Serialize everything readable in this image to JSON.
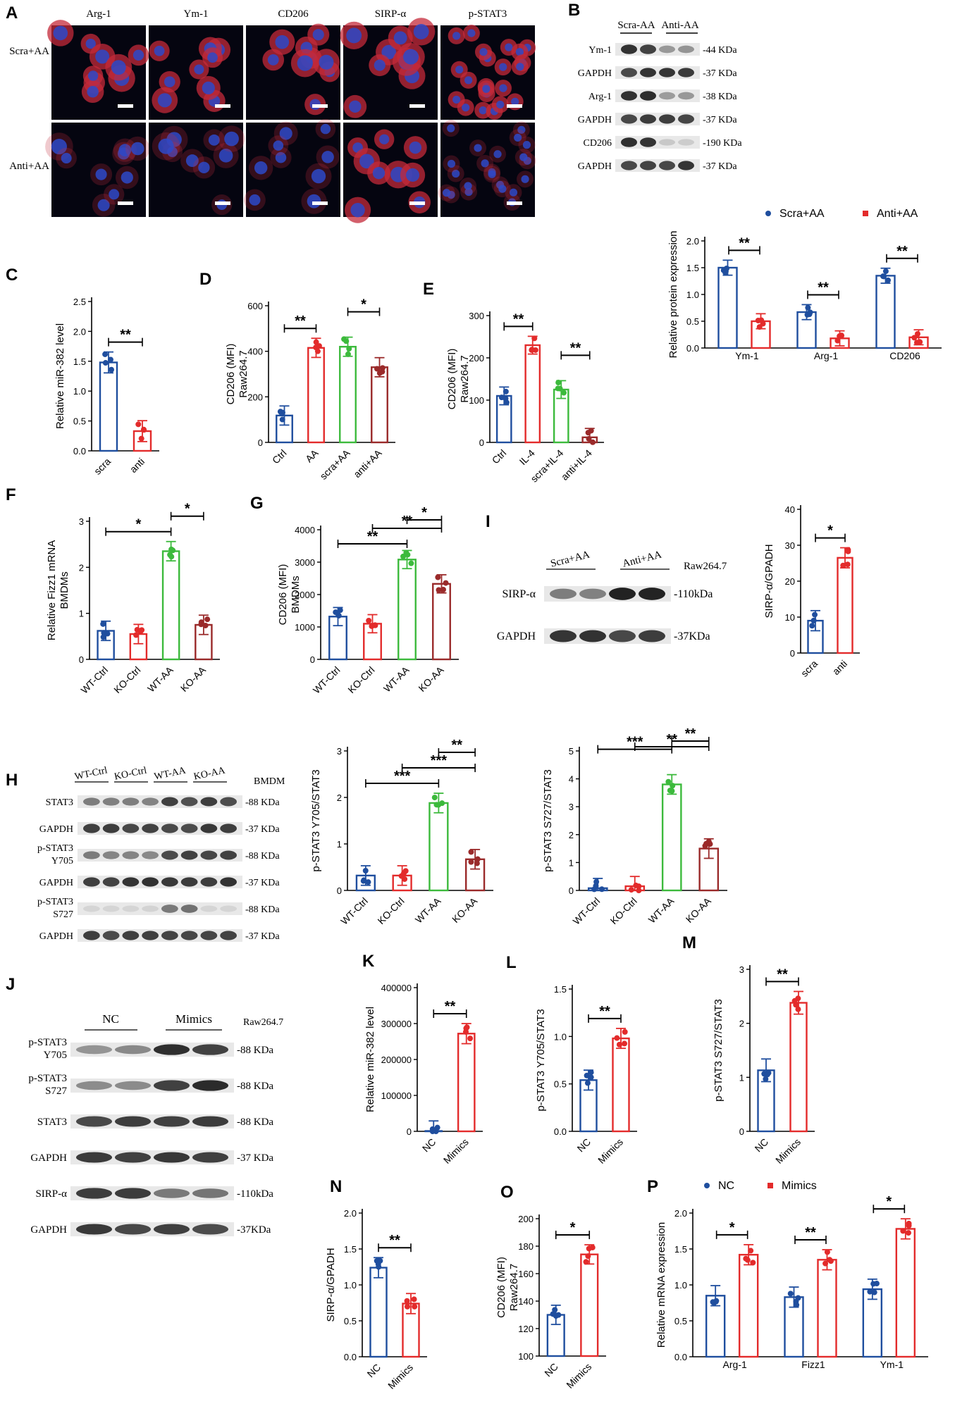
{
  "colors": {
    "blue": "#1f4e9e",
    "red": "#e32b2b",
    "green": "#3cba3c",
    "darkred": "#9a2a2a",
    "micro_bg": "#050510",
    "nucleus": "#2d49c8",
    "stain": "#c42a3a"
  },
  "panel_A": {
    "letter": "A",
    "columns": [
      "Arg-1",
      "Ym-1",
      "CD206",
      "SIRP-α",
      "p-STAT3"
    ],
    "rows": [
      "Scra+AA",
      "Anti+AA"
    ]
  },
  "panel_B": {
    "letter": "B",
    "groups": [
      "Scra-AA",
      "Anti-AA"
    ],
    "blots": [
      {
        "label": "Ym-1",
        "size": "-44 KDa"
      },
      {
        "label": "GAPDH",
        "size": "-37 KDa"
      },
      {
        "label": "Arg-1",
        "size": "-38 KDa"
      },
      {
        "label": "GAPDH",
        "size": "-37 KDa"
      },
      {
        "label": "CD206",
        "size": "-190 KDa"
      },
      {
        "label": "GAPDH",
        "size": "-37 KDa"
      }
    ]
  },
  "panel_H_blot": {
    "letter": "H",
    "groups": [
      "WT-Ctrl",
      "KO-Ctrl",
      "WT-AA",
      "KO-AA"
    ],
    "cell": "BMDM",
    "blots": [
      {
        "label": "STAT3",
        "size": "-88 KDa"
      },
      {
        "label": "GAPDH",
        "size": "-37 KDa"
      },
      {
        "label": "p-STAT3\nY705",
        "size": "-88 KDa"
      },
      {
        "label": "GAPDH",
        "size": "-37 KDa"
      },
      {
        "label": "p-STAT3\nS727",
        "size": "-88 KDa"
      },
      {
        "label": "GAPDH",
        "size": "-37 KDa"
      }
    ]
  },
  "panel_I_blot": {
    "letter": "I",
    "groups": [
      "Scra+AA",
      "Anti+AA"
    ],
    "cell": "Raw264.7",
    "blots": [
      {
        "label": "SIRP-α",
        "size": "-110kDa"
      },
      {
        "label": "GAPDH",
        "size": "-37KDa"
      }
    ]
  },
  "panel_J": {
    "letter": "J",
    "groups": [
      "NC",
      "Mimics"
    ],
    "cell": "Raw264.7",
    "blots": [
      {
        "label": "p-STAT3\nY705",
        "size": "-88 KDa"
      },
      {
        "label": "p-STAT3\nS727",
        "size": "-88 KDa"
      },
      {
        "label": "STAT3",
        "size": "-88 KDa"
      },
      {
        "label": "GAPDH",
        "size": "-37 KDa"
      },
      {
        "label": "SIRP-α",
        "size": "-110kDa"
      },
      {
        "label": "GAPDH",
        "size": "-37KDa"
      }
    ]
  },
  "chart_data": [
    {
      "id": "B",
      "type": "bar",
      "letter": "",
      "ylabel": "Relative protein expression",
      "ylim": [
        0,
        2.0
      ],
      "yticks": [
        "0.0",
        "0.5",
        "1.0",
        "1.5",
        "2.0"
      ],
      "categories": [
        "Ym-1",
        "Arg-1",
        "CD206"
      ],
      "series": [
        {
          "name": "Scra+AA",
          "values": [
            1.5,
            0.67,
            1.35
          ]
        },
        {
          "name": "Anti+AA",
          "values": [
            0.5,
            0.18,
            0.2
          ]
        }
      ],
      "legend": "top",
      "sig": [
        "**",
        "**",
        "**"
      ]
    },
    {
      "id": "C",
      "type": "bar",
      "letter": "C",
      "ylabel": "Relative miR-382 level",
      "ylim": [
        0,
        2.5
      ],
      "yticks": [
        "0.0",
        "0.5",
        "1.0",
        "1.5",
        "2.0",
        "2.5"
      ],
      "categories": [
        "scra",
        "anti"
      ],
      "values": [
        1.48,
        0.33
      ],
      "sig": [
        "**"
      ]
    },
    {
      "id": "D",
      "type": "bar",
      "letter": "D",
      "ylabel": "CD206 (MFI)\nRaw264.7",
      "ylim": [
        0,
        600
      ],
      "yticks": [
        "0",
        "200",
        "400",
        "600"
      ],
      "categories": [
        "Ctrl",
        "AA",
        "scra+AA",
        "anti+AA"
      ],
      "values": [
        118,
        415,
        420,
        330
      ],
      "sig": [
        "**",
        "*"
      ]
    },
    {
      "id": "E",
      "type": "bar",
      "letter": "E",
      "ylabel": "CD206 (MFI)\nRaw264.7",
      "ylim": [
        0,
        300
      ],
      "yticks": [
        "0",
        "100",
        "200",
        "300"
      ],
      "categories": [
        "Ctrl",
        "IL-4",
        "scra+IL-4",
        "anti+IL-4"
      ],
      "values": [
        110,
        230,
        125,
        12
      ],
      "sig": [
        "**",
        "**"
      ]
    },
    {
      "id": "F",
      "type": "bar",
      "letter": "F",
      "ylabel": "Relative Fizz1 mRNA\nBMDMs",
      "ylim": [
        0,
        3
      ],
      "yticks": [
        "0",
        "1",
        "2",
        "3"
      ],
      "categories": [
        "WT-Ctrl",
        "KO-Ctrl",
        "WT-AA",
        "KO-AA"
      ],
      "values": [
        0.62,
        0.55,
        2.35,
        0.75
      ],
      "sig": [
        "*",
        "*"
      ]
    },
    {
      "id": "G",
      "type": "bar",
      "letter": "G",
      "ylabel": "CD206 (MFI)\nBMDMs",
      "ylim": [
        0,
        4000
      ],
      "yticks": [
        "0",
        "1000",
        "2000",
        "3000",
        "4000"
      ],
      "categories": [
        "WT-Ctrl",
        "KO-Ctrl",
        "WT-AA",
        "KO-AA"
      ],
      "values": [
        1320,
        1100,
        3080,
        2330
      ],
      "sig": [
        "**",
        "**",
        "*"
      ]
    },
    {
      "id": "I",
      "type": "bar",
      "letter": "",
      "ylabel": "SIRP-α/GPADH",
      "ylim": [
        0,
        40
      ],
      "yticks": [
        "0",
        "10",
        "20",
        "30",
        "40"
      ],
      "categories": [
        "scra",
        "anti"
      ],
      "values": [
        9,
        26.5
      ],
      "sig": [
        "*"
      ]
    },
    {
      "id": "H1",
      "type": "bar",
      "letter": "",
      "ylabel": "p-STAT3 Y705/STAT3",
      "ylim": [
        0,
        3
      ],
      "yticks": [
        "0",
        "1",
        "2",
        "3"
      ],
      "categories": [
        "WT-Ctrl",
        "KO-Ctrl",
        "WT-AA",
        "KO-AA"
      ],
      "values": [
        0.32,
        0.32,
        1.88,
        0.67
      ],
      "sig": [
        "***",
        "***",
        "**"
      ]
    },
    {
      "id": "H2",
      "type": "bar",
      "letter": "",
      "ylabel": "p-STAT3 S727/STAT3",
      "ylim": [
        0,
        5
      ],
      "yticks": [
        "0",
        "1",
        "2",
        "3",
        "4",
        "5"
      ],
      "categories": [
        "WT-Ctrl",
        "KO-Ctrl",
        "WT-AA",
        "KO-AA"
      ],
      "values": [
        0.08,
        0.15,
        3.8,
        1.5
      ],
      "sig": [
        "**",
        "***",
        "**"
      ]
    },
    {
      "id": "K",
      "type": "bar",
      "letter": "K",
      "ylabel": "Relative miR-382 level",
      "ylim": [
        0,
        400000
      ],
      "yticks": [
        "0",
        "100000",
        "200000",
        "300000",
        "400000"
      ],
      "categories": [
        "NC",
        "Mimics"
      ],
      "values": [
        1000,
        272000
      ],
      "sig": [
        "**"
      ]
    },
    {
      "id": "L",
      "type": "bar",
      "letter": "L",
      "ylabel": "p-STAT3 Y705/STAT3",
      "ylim": [
        0,
        1.5
      ],
      "yticks": [
        "0.0",
        "0.5",
        "1.0",
        "1.5"
      ],
      "categories": [
        "NC",
        "Mimics"
      ],
      "values": [
        0.54,
        0.98
      ],
      "sig": [
        "**"
      ]
    },
    {
      "id": "M",
      "type": "bar",
      "letter": "M",
      "ylabel": "p-STAT3 S727/STAT3",
      "ylim": [
        0,
        3
      ],
      "yticks": [
        "0",
        "1",
        "2",
        "3"
      ],
      "categories": [
        "NC",
        "Mimics"
      ],
      "values": [
        1.13,
        2.38
      ],
      "sig": [
        "**"
      ]
    },
    {
      "id": "N",
      "type": "bar",
      "letter": "N",
      "ylabel": "SIRP-α/GPADH",
      "ylim": [
        0,
        2.0
      ],
      "yticks": [
        "0.0",
        "0.5",
        "1.0",
        "1.5",
        "2.0"
      ],
      "categories": [
        "NC",
        "Mimics"
      ],
      "values": [
        1.24,
        0.74
      ],
      "sig": [
        "**"
      ]
    },
    {
      "id": "O",
      "type": "bar",
      "letter": "O",
      "ylabel": "CD206 (MFI)\nRaw264.7",
      "ylim": [
        100,
        200
      ],
      "yticks": [
        "100",
        "120",
        "140",
        "160",
        "180",
        "200"
      ],
      "categories": [
        "NC",
        "Mimics"
      ],
      "values": [
        130,
        174
      ],
      "sig": [
        "*"
      ]
    },
    {
      "id": "P",
      "type": "bar",
      "letter": "P",
      "ylabel": "Relative mRNA expression",
      "ylim": [
        0,
        2.0
      ],
      "yticks": [
        "0.0",
        "0.5",
        "1.0",
        "1.5",
        "2.0"
      ],
      "categories": [
        "Arg-1",
        "Fizz1",
        "Ym-1"
      ],
      "series": [
        {
          "name": "NC",
          "values": [
            0.85,
            0.83,
            0.94
          ]
        },
        {
          "name": "Mimics",
          "values": [
            1.42,
            1.35,
            1.78
          ]
        }
      ],
      "legend": "top",
      "sig": [
        "*",
        "**",
        "*"
      ]
    }
  ]
}
